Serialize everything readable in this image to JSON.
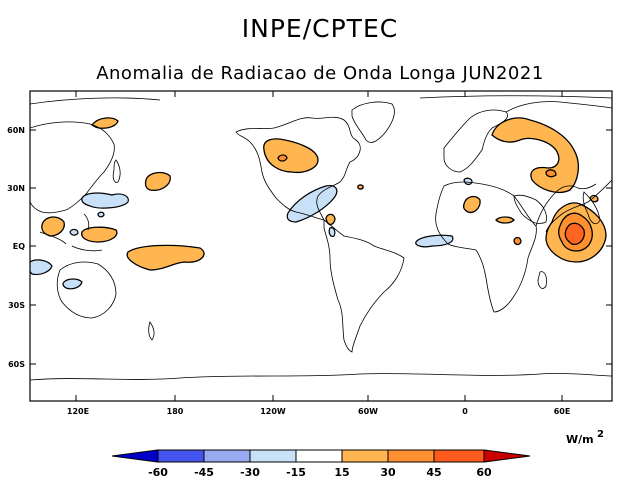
{
  "header": {
    "source": "INPE/CPTEC",
    "title": "Anomalia de Radiacao de Onda Longa JUN2021"
  },
  "axes": {
    "lat_ticks": [
      {
        "label": "60N",
        "lat": 60
      },
      {
        "label": "30N",
        "lat": 30
      },
      {
        "label": "EQ",
        "lat": 0
      },
      {
        "label": "30S",
        "lat": -30
      },
      {
        "label": "60S",
        "lat": -60
      }
    ],
    "lon_ticks": [
      {
        "label": "120E",
        "lon": 120
      },
      {
        "label": "180",
        "lon": 180
      },
      {
        "label": "120W",
        "lon": 240
      },
      {
        "label": "60W",
        "lon": 300
      },
      {
        "label": "0",
        "lon": 360
      },
      {
        "label": "60E",
        "lon": 420
      }
    ],
    "lon_range": [
      100,
      450
    ],
    "lat_range": [
      -85,
      80
    ]
  },
  "colorbar": {
    "unit": "W/m",
    "unit_exp": "2",
    "labels": [
      "-60",
      "-45",
      "-30",
      "-15",
      "15",
      "30",
      "45",
      "60"
    ],
    "colors": [
      "#0000cc",
      "#4455ee",
      "#99aaf0",
      "#c8e0f8",
      "#ffffff",
      "#ffb650",
      "#ff9030",
      "#ff5a1e",
      "#cc0000"
    ]
  },
  "colors": {
    "positive_weak": "#ffb650",
    "positive_mid": "#ff9030",
    "positive_strong": "#ff6420",
    "negative_weak": "#c8e0f8"
  }
}
